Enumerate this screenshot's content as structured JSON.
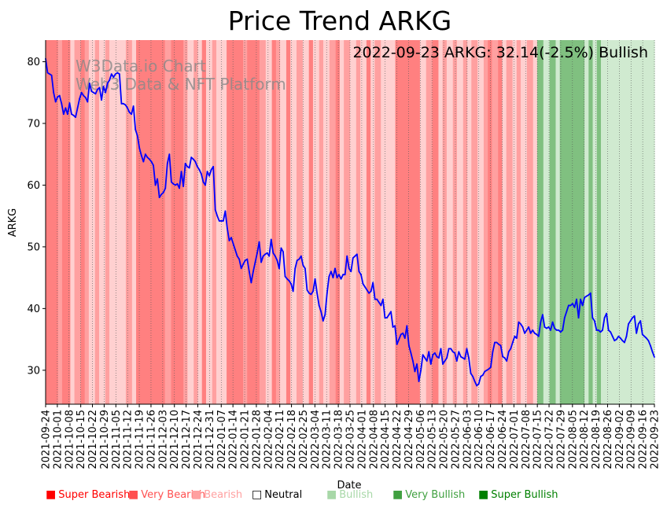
{
  "chart_data": {
    "type": "line",
    "title": "Price Trend ARKG",
    "xlabel": "Date",
    "ylabel": "ARKG",
    "ylim": [
      24.5,
      83.5
    ],
    "y_ticks": [
      30,
      40,
      50,
      60,
      70,
      80
    ],
    "annotation": "2022-09-23 ARKG: 32.14(-2.5%) Bullish",
    "watermark": [
      "W3Data.io Chart",
      "Web3 Data & NFT Platform"
    ],
    "x_tick_labels": [
      "2021-09-24",
      "2021-10-01",
      "2021-10-08",
      "2021-10-15",
      "2021-10-22",
      "2021-10-29",
      "2021-11-05",
      "2021-11-12",
      "2021-11-19",
      "2021-11-26",
      "2021-12-03",
      "2021-12-10",
      "2021-12-17",
      "2021-12-24",
      "2021-12-31",
      "2022-01-07",
      "2022-01-14",
      "2022-01-21",
      "2022-01-28",
      "2022-02-04",
      "2022-02-11",
      "2022-02-18",
      "2022-02-25",
      "2022-03-04",
      "2022-03-11",
      "2022-03-18",
      "2022-03-25",
      "2022-04-01",
      "2022-04-08",
      "2022-04-15",
      "2022-04-22",
      "2022-04-29",
      "2022-05-06",
      "2022-05-13",
      "2022-05-20",
      "2022-05-27",
      "2022-06-03",
      "2022-06-10",
      "2022-06-17",
      "2022-06-24",
      "2022-07-01",
      "2022-07-08",
      "2022-07-15",
      "2022-07-22",
      "2022-07-29",
      "2022-08-05",
      "2022-08-12",
      "2022-08-19",
      "2022-08-26",
      "2022-09-02",
      "2022-09-09",
      "2022-09-16",
      "2022-09-23"
    ],
    "series": [
      {
        "name": "ARKG",
        "color": "#0000ff",
        "values": [
          80.5,
          78.2,
          78.0,
          77.8,
          75.0,
          73.5,
          74.3,
          74.5,
          73.2,
          71.5,
          72.5,
          71.5,
          73.3,
          71.5,
          71.3,
          71.0,
          72.5,
          74.0,
          75.0,
          74.5,
          74.2,
          73.5,
          76.5,
          75.2,
          75.0,
          74.8,
          75.5,
          75.8,
          73.8,
          76.0,
          75.0,
          76.5,
          77.0,
          78.0,
          77.5,
          78.0,
          78.2,
          78.0,
          73.2,
          73.2,
          73.0,
          72.5,
          71.8,
          71.5,
          72.8,
          69.0,
          68.0,
          66.0,
          64.8,
          63.8,
          65.0,
          64.5,
          64.2,
          63.8,
          63.2,
          60.0,
          61.0,
          58.0,
          58.5,
          58.8,
          59.5,
          63.5,
          65.0,
          60.5,
          60.2,
          60.0,
          60.2,
          59.5,
          62.2,
          59.8,
          63.5,
          63.0,
          62.8,
          64.5,
          64.2,
          63.8,
          63.0,
          62.5,
          61.8,
          60.5,
          60.0,
          62.2,
          61.5,
          62.5,
          63.0,
          56.0,
          55.0,
          54.2,
          54.2,
          54.2,
          55.8,
          53.0,
          51.0,
          51.5,
          50.5,
          49.5,
          48.5,
          48.0,
          46.5,
          47.2,
          47.8,
          48.0,
          46.0,
          44.2,
          46.0,
          47.5,
          49.0,
          50.8,
          47.5,
          48.5,
          48.8,
          49.0,
          48.5,
          51.2,
          49.0,
          48.5,
          47.8,
          46.5,
          49.8,
          49.2,
          45.2,
          44.8,
          44.5,
          44.0,
          42.8,
          46.5,
          47.8,
          48.0,
          48.5,
          47.0,
          46.5,
          43.0,
          42.5,
          42.3,
          42.8,
          44.8,
          42.5,
          40.5,
          39.5,
          38.0,
          39.0,
          42.5,
          45.2,
          46.0,
          45.0,
          46.5,
          45.0,
          45.5,
          44.8,
          45.5,
          45.5,
          48.5,
          46.5,
          46.0,
          48.2,
          48.5,
          48.8,
          46.0,
          45.5,
          44.0,
          43.5,
          43.0,
          42.5,
          42.8,
          44.2,
          41.5,
          41.5,
          41.0,
          40.5,
          41.5,
          38.5,
          38.5,
          39.0,
          39.5,
          37.0,
          37.2,
          34.2,
          35.0,
          35.8,
          36.0,
          35.2,
          37.2,
          34.0,
          32.8,
          31.5,
          29.8,
          31.0,
          28.2,
          30.0,
          32.5,
          32.0,
          31.5,
          33.0,
          31.0,
          32.5,
          32.8,
          32.2,
          32.0,
          33.5,
          31.0,
          31.5,
          32.0,
          33.5,
          33.5,
          33.0,
          32.8,
          31.5,
          33.0,
          32.2,
          32.0,
          31.8,
          33.5,
          32.0,
          29.5,
          29.0,
          28.2,
          27.5,
          27.8,
          29.0,
          29.2,
          29.8,
          30.0,
          30.2,
          30.5,
          33.0,
          34.5,
          34.5,
          34.2,
          34.0,
          32.2,
          32.0,
          31.5,
          33.0,
          33.5,
          34.5,
          35.5,
          35.2,
          37.8,
          37.5,
          37.0,
          36.0,
          36.5,
          37.0,
          36.0,
          36.5,
          36.0,
          35.8,
          35.5,
          37.8,
          39.0,
          37.0,
          36.8,
          37.0,
          36.5,
          37.8,
          36.8,
          36.5,
          36.5,
          36.2,
          36.5,
          38.5,
          39.5,
          40.5,
          40.5,
          40.8,
          40.2,
          41.5,
          38.5,
          41.5,
          40.5,
          41.8,
          42.0,
          42.2,
          42.5,
          38.5,
          38.0,
          36.5,
          36.5,
          36.2,
          36.5,
          38.5,
          39.2,
          36.5,
          36.2,
          35.5,
          34.8,
          35.0,
          35.5,
          35.2,
          34.8,
          34.5,
          35.5,
          37.5,
          38.0,
          38.5,
          38.8,
          36.0,
          37.5,
          38.0,
          35.8,
          35.5,
          35.2,
          34.8,
          34.0,
          33.0,
          32.14
        ]
      }
    ],
    "sentiment_bands": [
      {
        "s": "SB",
        "n": 6
      },
      {
        "s": "VBe",
        "n": 2
      },
      {
        "s": "SB",
        "n": 4
      },
      {
        "s": "B",
        "n": 2
      },
      {
        "s": "VBe",
        "n": 3
      },
      {
        "s": "SB",
        "n": 2
      },
      {
        "s": "VBe",
        "n": 2
      },
      {
        "s": "B",
        "n": 3
      },
      {
        "s": "VBe",
        "n": 2
      },
      {
        "s": "B",
        "n": 3
      },
      {
        "s": "VBe",
        "n": 2
      },
      {
        "s": "B",
        "n": 8
      },
      {
        "s": "VBe",
        "n": 3
      },
      {
        "s": "B",
        "n": 2
      },
      {
        "s": "SB",
        "n": 14
      },
      {
        "s": "VBe",
        "n": 3
      },
      {
        "s": "SB",
        "n": 6
      },
      {
        "s": "VBe",
        "n": 2
      },
      {
        "s": "B",
        "n": 3
      },
      {
        "s": "VBe",
        "n": 2
      },
      {
        "s": "B",
        "n": 2
      },
      {
        "s": "SB",
        "n": 2
      },
      {
        "s": "B",
        "n": 3
      },
      {
        "s": "VBe",
        "n": 2
      },
      {
        "s": "B",
        "n": 5
      },
      {
        "s": "SB",
        "n": 8
      },
      {
        "s": "VBe",
        "n": 2
      },
      {
        "s": "SB",
        "n": 6
      },
      {
        "s": "VBe",
        "n": 3
      },
      {
        "s": "B",
        "n": 3
      },
      {
        "s": "SB",
        "n": 2
      },
      {
        "s": "VBe",
        "n": 2
      },
      {
        "s": "B",
        "n": 3
      },
      {
        "s": "SB",
        "n": 2
      },
      {
        "s": "B",
        "n": 3
      },
      {
        "s": "VBe",
        "n": 3
      },
      {
        "s": "B",
        "n": 3
      },
      {
        "s": "SB",
        "n": 2
      },
      {
        "s": "B",
        "n": 3
      },
      {
        "s": "VBe",
        "n": 2
      },
      {
        "s": "B",
        "n": 3
      },
      {
        "s": "VBe",
        "n": 3
      },
      {
        "s": "SB",
        "n": 2
      },
      {
        "s": "B",
        "n": 2
      },
      {
        "s": "VBe",
        "n": 3
      },
      {
        "s": "B",
        "n": 3
      },
      {
        "s": "VBe",
        "n": 2
      },
      {
        "s": "B",
        "n": 3
      },
      {
        "s": "SB",
        "n": 2
      },
      {
        "s": "B",
        "n": 2
      },
      {
        "s": "VBe",
        "n": 3
      },
      {
        "s": "B",
        "n": 7
      },
      {
        "s": "SB",
        "n": 12
      },
      {
        "s": "B",
        "n": 3
      },
      {
        "s": "VBe",
        "n": 3
      },
      {
        "s": "SB",
        "n": 3
      },
      {
        "s": "B",
        "n": 2
      },
      {
        "s": "VBe",
        "n": 2
      },
      {
        "s": "B",
        "n": 3
      },
      {
        "s": "VBe",
        "n": 2
      },
      {
        "s": "B",
        "n": 3
      },
      {
        "s": "VBe",
        "n": 2
      },
      {
        "s": "B",
        "n": 2
      },
      {
        "s": "VBe",
        "n": 3
      },
      {
        "s": "B",
        "n": 3
      },
      {
        "s": "VBe",
        "n": 2
      },
      {
        "s": "SB",
        "n": 2
      },
      {
        "s": "VBe",
        "n": 3
      },
      {
        "s": "SB",
        "n": 2
      },
      {
        "s": "B",
        "n": 2
      },
      {
        "s": "VBe",
        "n": 3
      },
      {
        "s": "B",
        "n": 2
      },
      {
        "s": "VBe",
        "n": 2
      },
      {
        "s": "B",
        "n": 3
      },
      {
        "s": "VBe",
        "n": 3
      },
      {
        "s": "B",
        "n": 2
      },
      {
        "s": "VBu",
        "n": 3
      },
      {
        "s": "Bu",
        "n": 3
      },
      {
        "s": "VBu",
        "n": 3
      },
      {
        "s": "Bu",
        "n": 2
      },
      {
        "s": "VBu",
        "n": 12
      },
      {
        "s": "Bu",
        "n": 2
      },
      {
        "s": "VBu",
        "n": 2
      },
      {
        "s": "Bu",
        "n": 2
      },
      {
        "s": "VBu",
        "n": 2
      },
      {
        "s": "Bu",
        "n": 26
      }
    ],
    "band_colors": {
      "SB": "#ff8080",
      "VBe": "#ffa0a0",
      "B": "#ffd0d0",
      "Bu": "#d0ead0",
      "VBu": "#80c080"
    },
    "legend": [
      {
        "label": "Super Bearish",
        "marker": "■",
        "color": "#ff0000"
      },
      {
        "label": "Very Bearish",
        "marker": "■",
        "color": "#ff5050"
      },
      {
        "label": "Bearish",
        "marker": "■",
        "color": "#ffa0a0"
      },
      {
        "label": "Neutral",
        "marker": "□",
        "color": "#000000"
      },
      {
        "label": "Bullish",
        "marker": "■",
        "color": "#a8d8a8"
      },
      {
        "label": "Very Bullish",
        "marker": "■",
        "color": "#40a040"
      },
      {
        "label": "Super Bullish",
        "marker": "■",
        "color": "#008000"
      }
    ]
  }
}
